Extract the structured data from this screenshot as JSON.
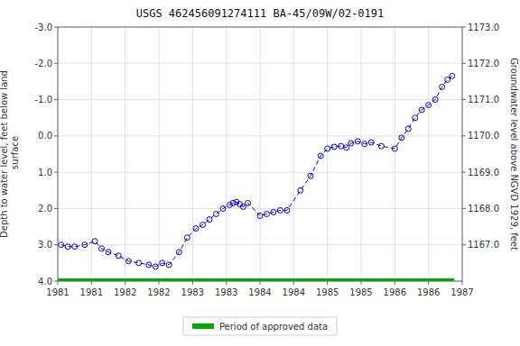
{
  "chart_data": {
    "type": "line",
    "title": "USGS 462456091274111 BA-45/09W/02-0191",
    "y_label": "Depth to water level, feet below land\n surface",
    "y2_label": "Groundwater level above NGVD 1929, feet",
    "xlim": [
      1981.0,
      1987.0
    ],
    "xticks": [
      1981,
      {
        "value": 1981.5,
        "label": "1981"
      },
      1982,
      {
        "value": 1982.5,
        "label": "1982"
      },
      1983,
      {
        "value": 1983.5,
        "label": "1983"
      },
      1984,
      {
        "value": 1984.5,
        "label": "1984"
      },
      1985,
      {
        "value": 1985.5,
        "label": "1985"
      },
      1986,
      {
        "value": 1986.5,
        "label": "1986"
      },
      1987
    ],
    "ylim": [
      4.0,
      -3.0
    ],
    "yticks": [
      {
        "value": 4.0,
        "label": "4.0"
      },
      {
        "value": 3.0,
        "label": "3.0"
      },
      {
        "value": 2.0,
        "label": "2.0"
      },
      {
        "value": 1.0,
        "label": "1.0"
      },
      {
        "value": 0.0,
        "label": "0.0"
      },
      {
        "value": -1.0,
        "label": "-1.0"
      },
      {
        "value": -2.0,
        "label": "-2.0"
      },
      {
        "value": -3.0,
        "label": "-3.0"
      }
    ],
    "y2lim": [
      1166.0,
      1173.0
    ],
    "y2ticks": [
      {
        "value": 1167.0,
        "label": "1167.0"
      },
      {
        "value": 1168.0,
        "label": "1168.0"
      },
      {
        "value": 1169.0,
        "label": "1169.0"
      },
      {
        "value": 1170.0,
        "label": "1170.0"
      },
      {
        "value": 1171.0,
        "label": "1171.0"
      },
      {
        "value": 1172.0,
        "label": "1172.0"
      },
      {
        "value": 1173.0,
        "label": "1173.0"
      }
    ],
    "grid": true,
    "legend": "bottom",
    "series": [
      {
        "color": "#0000cc",
        "marker": "circle",
        "line_style": "dashed",
        "x": [
          1981.05,
          1981.15,
          1981.25,
          1981.4,
          1981.55,
          1981.65,
          1981.75,
          1981.9,
          1982.05,
          1982.2,
          1982.35,
          1982.45,
          1982.55,
          1982.65,
          1982.8,
          1982.92,
          1983.05,
          1983.15,
          1983.25,
          1983.35,
          1983.45,
          1983.55,
          1983.6,
          1983.65,
          1983.7,
          1983.75,
          1983.82,
          1984.0,
          1984.1,
          1984.2,
          1984.3,
          1984.4,
          1984.6,
          1984.75,
          1984.9,
          1985.0,
          1985.1,
          1985.2,
          1985.28,
          1985.35,
          1985.45,
          1985.55,
          1985.65,
          1985.8,
          1986.0,
          1986.1,
          1986.2,
          1986.3,
          1986.4,
          1986.5,
          1986.6,
          1986.7,
          1986.78,
          1986.85
        ],
        "values": [
          3.0,
          3.05,
          3.05,
          3.0,
          2.9,
          3.1,
          3.2,
          3.3,
          3.45,
          3.5,
          3.55,
          3.6,
          3.5,
          3.55,
          3.2,
          2.8,
          2.55,
          2.45,
          2.3,
          2.15,
          2.0,
          1.9,
          1.85,
          1.82,
          1.88,
          1.95,
          1.85,
          2.2,
          2.15,
          2.1,
          2.05,
          2.05,
          1.5,
          1.1,
          0.55,
          0.35,
          0.3,
          0.28,
          0.32,
          0.2,
          0.15,
          0.22,
          0.18,
          0.28,
          0.35,
          0.05,
          -0.2,
          -0.5,
          -0.72,
          -0.85,
          -1.0,
          -1.35,
          -1.55,
          -1.65
        ]
      },
      {
        "name": "Period of approved data",
        "color": "#00aa00",
        "line_style": "solid",
        "x": [
          1981.0,
          1986.88
        ],
        "values": [
          4.0,
          4.0
        ]
      }
    ]
  }
}
